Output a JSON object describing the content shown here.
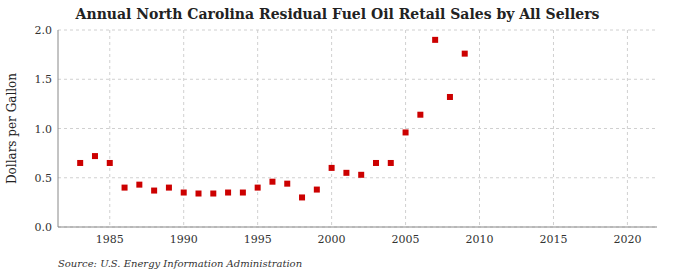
{
  "chart_data": {
    "type": "scatter",
    "title": "Annual North Carolina Residual Fuel Oil Retail Sales by All Sellers",
    "ylabel": "Dollars per Gallon",
    "source": "Source: U.S. Energy Information Administration",
    "x": [
      1983,
      1984,
      1985,
      1986,
      1987,
      1988,
      1989,
      1990,
      1991,
      1992,
      1993,
      1994,
      1995,
      1996,
      1997,
      1998,
      1999,
      2000,
      2001,
      2002,
      2003,
      2004,
      2005,
      2006,
      2007,
      2008,
      2009
    ],
    "values": [
      0.65,
      0.72,
      0.65,
      0.4,
      0.43,
      0.37,
      0.4,
      0.35,
      0.34,
      0.34,
      0.35,
      0.35,
      0.4,
      0.46,
      0.44,
      0.3,
      0.38,
      0.6,
      0.55,
      0.53,
      0.65,
      0.65,
      0.96,
      1.14,
      1.9,
      1.32,
      1.76
    ],
    "color": "#cc0000",
    "marker": "square",
    "xlim": [
      1981.5,
      2022
    ],
    "ylim": [
      0.0,
      2.0
    ],
    "xticks": [
      1985,
      1990,
      1995,
      2000,
      2005,
      2010,
      2015,
      2020
    ],
    "yticks": [
      {
        "value": 0.0,
        "label": "0.0"
      },
      0.5,
      {
        "value": 1.0,
        "label": "1.0"
      },
      1.5,
      {
        "value": 2.0,
        "label": "2.0"
      }
    ],
    "grid": true
  }
}
